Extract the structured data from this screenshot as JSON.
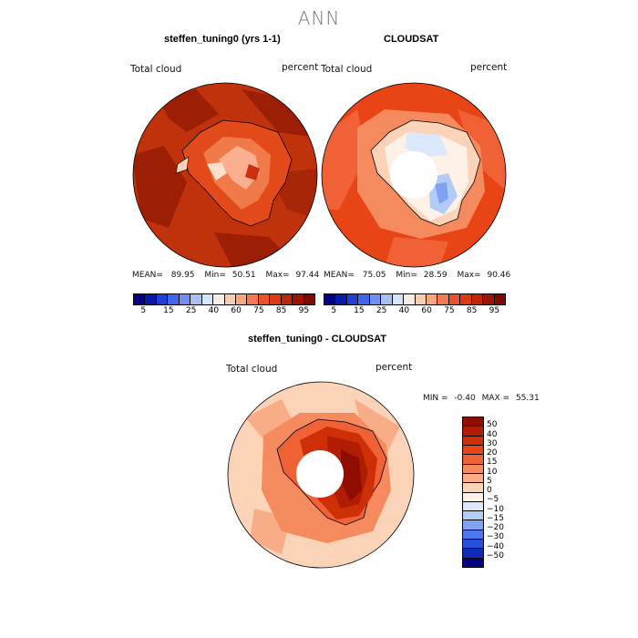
{
  "figure": {
    "season": "ANN"
  },
  "panels": {
    "model": {
      "title": "steffen_tuning0 (yrs 1-1)",
      "variable": "Total cloud",
      "units": "percent",
      "mean_label": "MEAN=",
      "mean": "89.95",
      "min_label": "Min=",
      "min": "50.51",
      "max_label": "Max=",
      "max": "97.44"
    },
    "obs": {
      "title": "CLOUDSAT",
      "variable": "Total cloud",
      "units": "percent",
      "mean_label": "MEAN=",
      "mean": "75.05",
      "min_label": "Min=",
      "min": "28.59",
      "max_label": "Max=",
      "max": "90.46"
    },
    "diff": {
      "title": "steffen_tuning0 - CLOUDSAT",
      "variable": "Total cloud",
      "units": "percent",
      "min_label": "MIN =",
      "min": "-0.40",
      "max_label": "MAX =",
      "max": "55.31"
    }
  },
  "colorbar_abs": {
    "labels": [
      "5",
      "15",
      "25",
      "40",
      "60",
      "75",
      "85",
      "95"
    ],
    "colors": [
      "#000080",
      "#0a1aa8",
      "#1f3fd6",
      "#3f66ee",
      "#6f90f2",
      "#a6c0f5",
      "#d6e6fa",
      "#fbeee4",
      "#f9cdb0",
      "#f7a680",
      "#f27a52",
      "#ec5228",
      "#dd3a10",
      "#bf2606",
      "#9c1500",
      "#7e0b00"
    ]
  },
  "colorbar_diff": {
    "labels": [
      "50",
      "40",
      "30",
      "20",
      "15",
      "10",
      "5",
      "0",
      "−5",
      "−10",
      "−15",
      "−20",
      "−30",
      "−40",
      "−50"
    ],
    "colors": [
      "#8e0c00",
      "#b01d02",
      "#cf2f06",
      "#e84416",
      "#f06236",
      "#f58a5e",
      "#f8ad88",
      "#fbd3b8",
      "#fdf1e8",
      "#dbe8fb",
      "#b2ccf6",
      "#7fa3f2",
      "#4a78ec",
      "#2550da",
      "#0d2bb8",
      "#000080"
    ]
  }
}
